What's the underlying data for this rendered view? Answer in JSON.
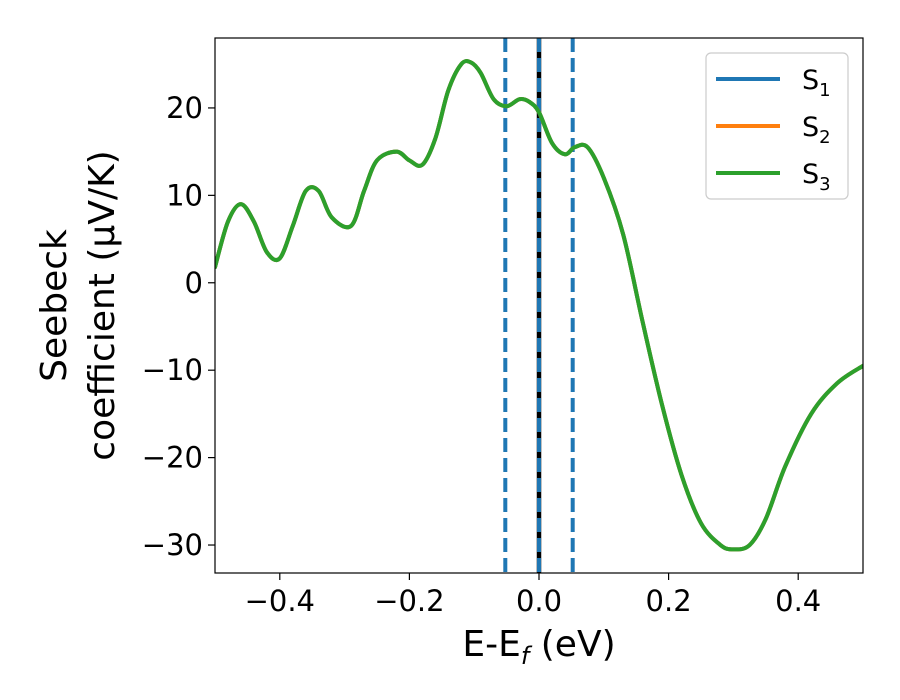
{
  "chart_data": {
    "type": "line",
    "title": "",
    "xlabel": {
      "main": "E-E",
      "sub": "f",
      "unit": " (eV)"
    },
    "ylabel": {
      "line1": "Seebeck",
      "line2": "coefficient  (μV/K)"
    },
    "xlim": [
      -0.5,
      0.5
    ],
    "ylim": [
      -33.2,
      28
    ],
    "xticks": [
      -0.4,
      -0.2,
      0.0,
      0.2,
      0.4
    ],
    "xtick_labels": [
      "−0.4",
      "−0.2",
      "0.0",
      "0.2",
      "0.4"
    ],
    "yticks": [
      -30,
      -20,
      -10,
      0,
      10,
      20
    ],
    "ytick_labels": [
      "−30",
      "−20",
      "−10",
      "0",
      "10",
      "20"
    ],
    "grid": false,
    "legend_position": "top-right",
    "x": [
      -0.5,
      -0.48,
      -0.46,
      -0.44,
      -0.42,
      -0.4,
      -0.38,
      -0.36,
      -0.34,
      -0.32,
      -0.29,
      -0.27,
      -0.25,
      -0.22,
      -0.2,
      -0.18,
      -0.16,
      -0.14,
      -0.12,
      -0.105,
      -0.09,
      -0.07,
      -0.05,
      -0.03,
      -0.015,
      0.0,
      0.02,
      0.04,
      0.055,
      0.075,
      0.1,
      0.13,
      0.16,
      0.19,
      0.22,
      0.25,
      0.28,
      0.3,
      0.325,
      0.35,
      0.38,
      0.42,
      0.46,
      0.5
    ],
    "series": [
      {
        "name": "S",
        "sub": "1",
        "color": "#1f77b4",
        "values": [
          1.8,
          7.0,
          9.0,
          7.0,
          3.5,
          2.8,
          6.5,
          10.5,
          10.5,
          7.5,
          6.5,
          10.5,
          14.0,
          15.0,
          14.0,
          13.5,
          16.5,
          22.0,
          25.0,
          25.2,
          24.0,
          21.0,
          20.2,
          21.0,
          20.7,
          19.5,
          16.0,
          14.7,
          15.5,
          15.5,
          12.0,
          5.5,
          -4.5,
          -14.0,
          -22.0,
          -27.5,
          -30.0,
          -30.5,
          -30.0,
          -27.0,
          -21.0,
          -15.0,
          -11.5,
          -9.5
        ]
      },
      {
        "name": "S",
        "sub": "2",
        "color": "#ff7f0e",
        "values": [
          1.8,
          7.0,
          9.0,
          7.0,
          3.5,
          2.8,
          6.5,
          10.5,
          10.5,
          7.5,
          6.5,
          10.5,
          14.0,
          15.0,
          14.0,
          13.5,
          16.5,
          22.0,
          25.0,
          25.2,
          24.0,
          21.0,
          20.2,
          21.0,
          20.7,
          19.5,
          16.0,
          14.7,
          15.5,
          15.5,
          12.0,
          5.5,
          -4.5,
          -14.0,
          -22.0,
          -27.5,
          -30.0,
          -30.5,
          -30.0,
          -27.0,
          -21.0,
          -15.0,
          -11.5,
          -9.5
        ]
      },
      {
        "name": "S",
        "sub": "3",
        "color": "#2ca02c",
        "values": [
          1.8,
          7.0,
          9.0,
          7.0,
          3.5,
          2.8,
          6.5,
          10.5,
          10.5,
          7.5,
          6.5,
          10.5,
          14.0,
          15.0,
          14.0,
          13.5,
          16.5,
          22.0,
          25.0,
          25.2,
          24.0,
          21.0,
          20.2,
          21.0,
          20.7,
          19.5,
          16.0,
          14.7,
          15.5,
          15.5,
          12.0,
          5.5,
          -4.5,
          -14.0,
          -22.0,
          -27.5,
          -30.0,
          -30.5,
          -30.0,
          -27.0,
          -21.0,
          -15.0,
          -11.5,
          -9.5
        ]
      }
    ],
    "vertical_lines": [
      {
        "x": -0.052,
        "style": "dashed",
        "color": "#1f77b4"
      },
      {
        "x": 0.052,
        "style": "dashed",
        "color": "#1f77b4"
      },
      {
        "x": 0.0,
        "style": "solid",
        "color": "#000000"
      },
      {
        "x": 0.0,
        "style": "dashed",
        "color": "#1f77b4"
      }
    ]
  }
}
